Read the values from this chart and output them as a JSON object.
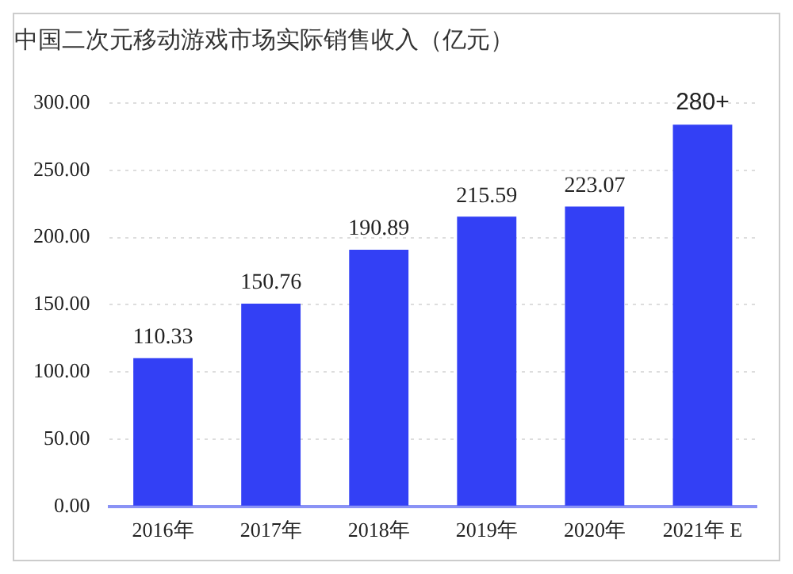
{
  "chart_data": {
    "type": "bar",
    "title": "中国二次元移动游戏市场实际销售收入（亿元）",
    "categories": [
      "2016年",
      "2017年",
      "2018年",
      "2019年",
      "2020年",
      "2021年 E"
    ],
    "values": [
      110.33,
      150.76,
      190.89,
      215.59,
      223.07,
      284
    ],
    "value_labels": [
      "110.33",
      "150.76",
      "190.89",
      "215.59",
      "223.07",
      "280+"
    ],
    "color": "#3340f5",
    "ylim": [
      0,
      300
    ],
    "yticks": [
      {
        "value": 0,
        "label": "0.00"
      },
      {
        "value": 50,
        "label": "50.00"
      },
      {
        "value": 100,
        "label": "100.00"
      },
      {
        "value": 150,
        "label": "150.00"
      },
      {
        "value": 200,
        "label": "200.00"
      },
      {
        "value": 250,
        "label": "250.00"
      },
      {
        "value": 300,
        "label": "300.00"
      }
    ],
    "grid": "y",
    "legend": false
  }
}
